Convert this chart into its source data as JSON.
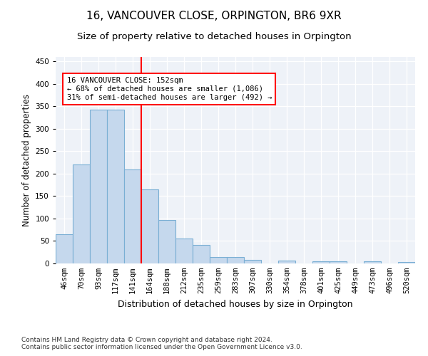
{
  "title": "16, VANCOUVER CLOSE, ORPINGTON, BR6 9XR",
  "subtitle": "Size of property relative to detached houses in Orpington",
  "xlabel": "Distribution of detached houses by size in Orpington",
  "ylabel": "Number of detached properties",
  "bar_labels": [
    "46sqm",
    "70sqm",
    "93sqm",
    "117sqm",
    "141sqm",
    "164sqm",
    "188sqm",
    "212sqm",
    "235sqm",
    "259sqm",
    "283sqm",
    "307sqm",
    "330sqm",
    "354sqm",
    "378sqm",
    "401sqm",
    "425sqm",
    "449sqm",
    "473sqm",
    "496sqm",
    "520sqm"
  ],
  "bar_values": [
    65,
    220,
    343,
    343,
    210,
    165,
    97,
    56,
    42,
    15,
    15,
    8,
    0,
    7,
    0,
    5,
    4,
    0,
    5,
    0,
    3
  ],
  "bar_color": "#c5d8ed",
  "bar_edge_color": "#7aafd4",
  "vline_x": 4.5,
  "vline_color": "red",
  "annotation_text": "16 VANCOUVER CLOSE: 152sqm\n← 68% of detached houses are smaller (1,086)\n31% of semi-detached houses are larger (492) →",
  "annotation_box_color": "white",
  "annotation_box_edge": "red",
  "ylim": [
    0,
    460
  ],
  "yticks": [
    0,
    50,
    100,
    150,
    200,
    250,
    300,
    350,
    400,
    450
  ],
  "footer_line1": "Contains HM Land Registry data © Crown copyright and database right 2024.",
  "footer_line2": "Contains public sector information licensed under the Open Government Licence v3.0.",
  "title_fontsize": 11,
  "subtitle_fontsize": 9.5,
  "axis_label_fontsize": 8.5,
  "tick_fontsize": 7.5,
  "footer_fontsize": 6.5
}
